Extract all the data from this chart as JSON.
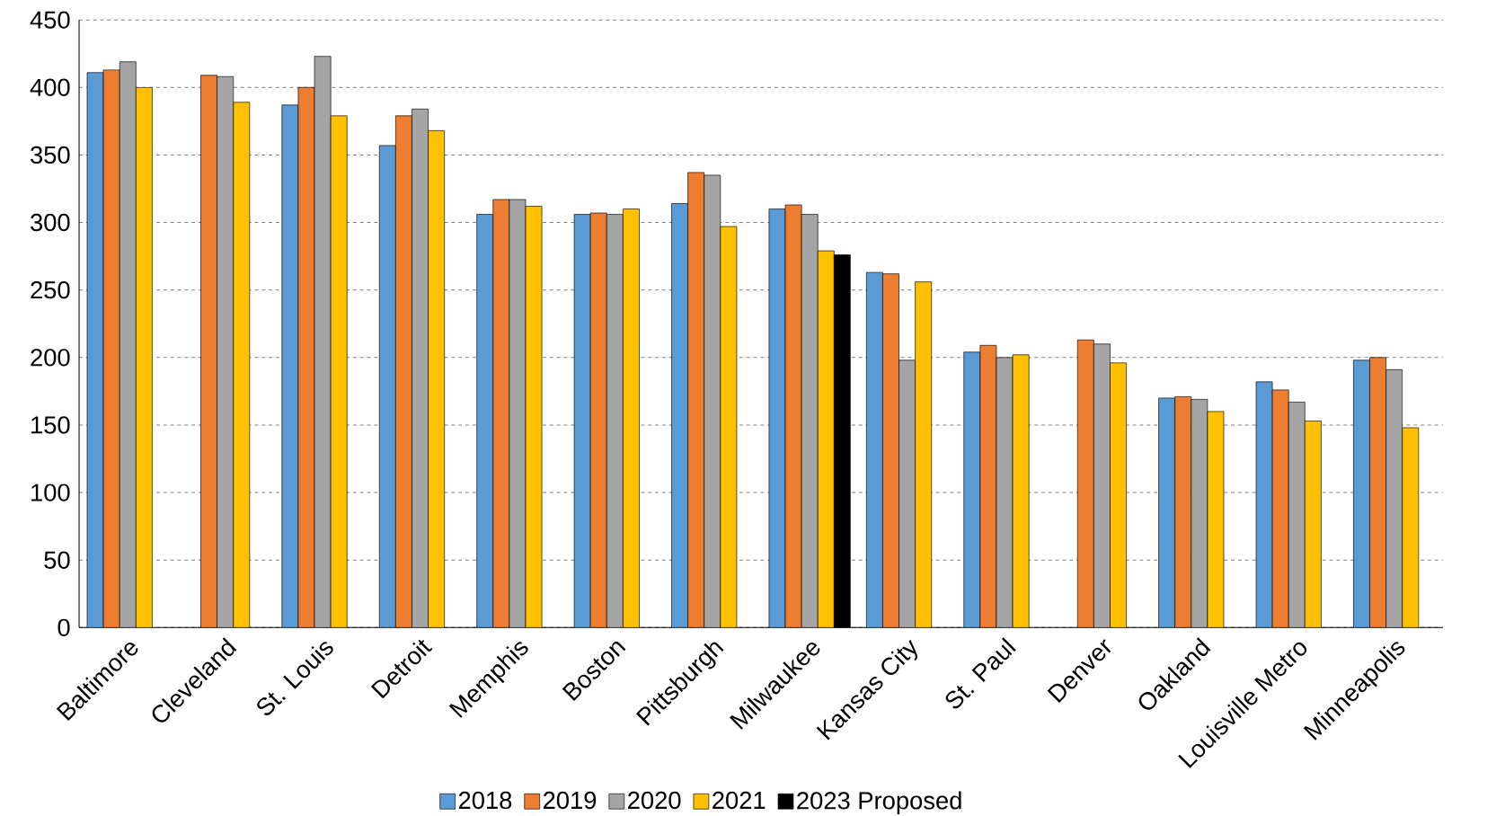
{
  "chart_data": {
    "type": "bar",
    "categories": [
      "Baltimore",
      "Cleveland",
      "St. Louis",
      "Detroit",
      "Memphis",
      "Boston",
      "Pittsburgh",
      "Milwaukee",
      "Kansas City",
      "St. Paul",
      "Denver",
      "Oakland",
      "Louisville Metro",
      "Minneapolis"
    ],
    "series": [
      {
        "name": "2018",
        "color": "#5b9bd5",
        "values": [
          411,
          null,
          387,
          357,
          306,
          306,
          314,
          310,
          263,
          204,
          null,
          170,
          182,
          198
        ]
      },
      {
        "name": "2019",
        "color": "#ed7d31",
        "values": [
          413,
          409,
          400,
          379,
          317,
          307,
          337,
          313,
          262,
          209,
          213,
          171,
          176,
          200
        ]
      },
      {
        "name": "2020",
        "color": "#a5a5a5",
        "values": [
          419,
          408,
          423,
          384,
          317,
          306,
          335,
          306,
          198,
          200,
          210,
          169,
          167,
          191
        ]
      },
      {
        "name": "2021",
        "color": "#ffc000",
        "values": [
          400,
          389,
          379,
          368,
          312,
          310,
          297,
          279,
          256,
          202,
          196,
          160,
          153,
          148
        ]
      },
      {
        "name": "2023 Proposed",
        "color": "#000000",
        "values": [
          null,
          null,
          null,
          null,
          null,
          null,
          null,
          276,
          null,
          null,
          null,
          null,
          null,
          null
        ]
      }
    ],
    "ylim": [
      0,
      450
    ],
    "yticks": [
      0,
      50,
      100,
      150,
      200,
      250,
      300,
      350,
      400,
      450
    ],
    "grid": "y",
    "legend": "bottom"
  }
}
